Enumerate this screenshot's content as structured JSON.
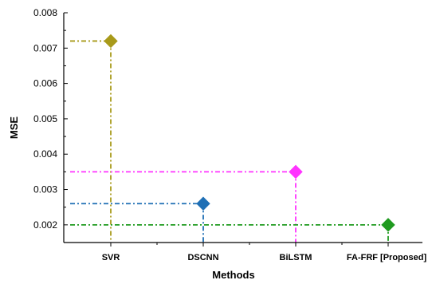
{
  "chart_data": {
    "type": "scatter",
    "title": "",
    "xlabel": "Methods",
    "ylabel": "MSE",
    "categories": [
      "SVR",
      "DSCNN",
      "BiLSTM",
      "FA-FRF [Proposed]"
    ],
    "values": [
      0.0072,
      0.0026,
      0.0035,
      0.002
    ],
    "ylim": [
      0.0015,
      0.008
    ],
    "y_ticks": [
      "0.002",
      "0.003",
      "0.004",
      "0.005",
      "0.006",
      "0.007",
      "0.008"
    ],
    "marker": "diamond",
    "line_style": "dash-dot",
    "grid": false,
    "legend": "none",
    "colors": [
      "#a89a1a",
      "#1f6fb5",
      "#ff33ff",
      "#1f9a1f"
    ]
  }
}
